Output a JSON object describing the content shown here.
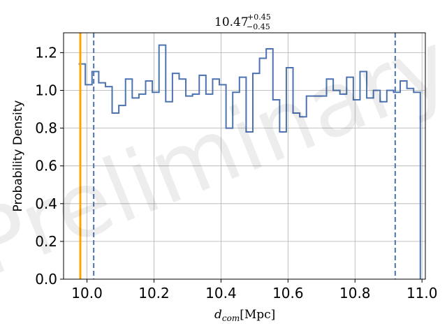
{
  "chart_data": {
    "type": "histogram",
    "title": {
      "value": "10.47",
      "sup": "+0.45",
      "sub": "−0.45"
    },
    "xlabel": {
      "symbol": "d",
      "subscript": "com",
      "unit": "[Mpc]"
    },
    "ylabel": "Probability Density",
    "xlim": [
      9.93,
      11.01
    ],
    "ylim": [
      0,
      1.305
    ],
    "xticks": [
      10.0,
      10.2,
      10.4,
      10.6,
      10.8,
      11.0
    ],
    "xtick_labels": [
      "10.0",
      "10.2",
      "10.4",
      "10.6",
      "10.8",
      "11.0"
    ],
    "yticks": [
      0,
      0.2,
      0.4,
      0.6,
      0.8,
      1.0,
      1.2
    ],
    "ytick_labels": [
      "0.0",
      "0.2",
      "0.4",
      "0.6",
      "0.8",
      "1.0",
      "1.2"
    ],
    "grid": true,
    "watermark": "Preliminary",
    "bin_start": 9.975,
    "bin_width": 0.02,
    "densities": [
      1.14,
      1.03,
      1.1,
      1.04,
      1.02,
      0.88,
      0.92,
      1.06,
      0.96,
      0.98,
      1.05,
      0.99,
      1.24,
      0.94,
      1.09,
      1.06,
      0.97,
      0.98,
      1.08,
      0.98,
      1.06,
      1.03,
      0.8,
      0.99,
      1.07,
      0.78,
      1.09,
      1.17,
      1.22,
      0.95,
      0.78,
      1.12,
      0.88,
      0.86,
      0.97,
      0.97,
      0.97,
      1.06,
      1.0,
      0.98,
      1.07,
      0.95,
      1.1,
      0.96,
      1.0,
      0.94,
      1.0,
      0.99,
      1.05,
      1.01,
      0.99
    ],
    "vlines": [
      {
        "x": 9.98,
        "style": "solid",
        "color": "#ffa500"
      },
      {
        "x": 10.02,
        "style": "dashed",
        "color": "#4c72b0"
      },
      {
        "x": 10.92,
        "style": "dashed",
        "color": "#4c72b0"
      }
    ],
    "step_color": "#4c72b0"
  }
}
